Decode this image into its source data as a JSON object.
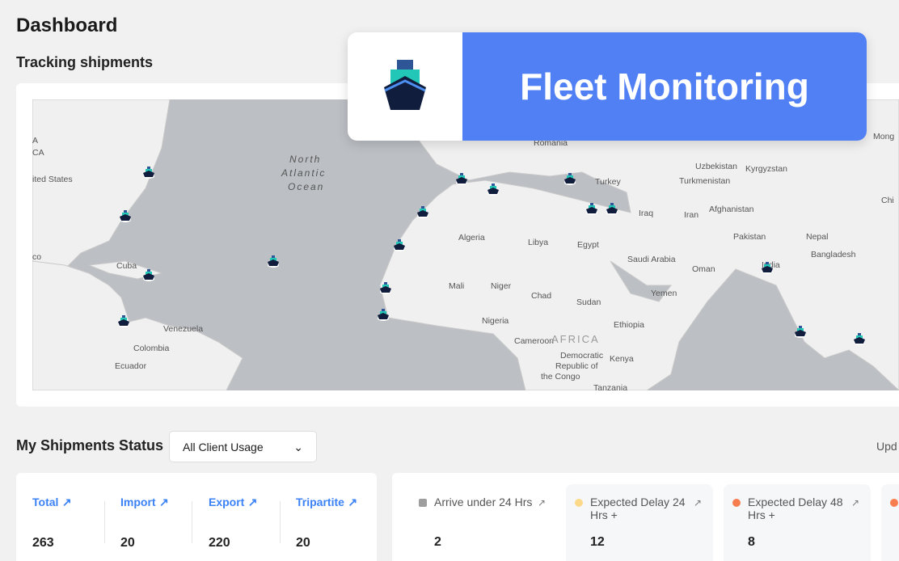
{
  "header": {
    "title": "Dashboard",
    "subtitle": "Tracking shipments"
  },
  "banner": {
    "title": "Fleet Monitoring",
    "icon": "ship-icon",
    "color": "#5180f5"
  },
  "map": {
    "labels": [
      "ited States",
      "CA",
      "A",
      "co",
      "Cuba",
      "Venezuela",
      "Colombia",
      "Ecuador",
      "North",
      "Atlantic",
      "Ocean",
      "Romania",
      "Turkey",
      "Uzbekistan",
      "Kyrgyzstan",
      "Turkmenistan",
      "Iraq",
      "Iran",
      "Afghanistan",
      "Pakistan",
      "Nepal",
      "Bangladesh",
      "India",
      "Chi",
      "Mong",
      "Algeria",
      "Libya",
      "Egypt",
      "Saudi Arabia",
      "Oman",
      "Yemen",
      "Mali",
      "Niger",
      "Chad",
      "Sudan",
      "Ethiopia",
      "Nigeria",
      "Cameroon",
      "AFRICA",
      "Democratic",
      "Republic of",
      "the Congo",
      "Kenya",
      "Tanzania",
      "A"
    ],
    "ship_count_shown": 17
  },
  "status": {
    "title": "My Shipments Status",
    "filter": "All Client Usage",
    "updated_label": "Upd"
  },
  "summary": [
    {
      "label": "Total",
      "value": "263"
    },
    {
      "label": "Import",
      "value": "20"
    },
    {
      "label": "Export",
      "value": "220"
    },
    {
      "label": "Tripartite",
      "value": "20"
    }
  ],
  "tiles": [
    {
      "label": "Arrive under 24 Hrs",
      "value": "2",
      "color": "#9e9e9e"
    },
    {
      "label": "Expected Delay 24 Hrs +",
      "value": "12",
      "color": "#fcd98a"
    },
    {
      "label": "Expected Delay 48 Hrs +",
      "value": "8",
      "color": "#f97e4f"
    }
  ],
  "arrow": "↗"
}
